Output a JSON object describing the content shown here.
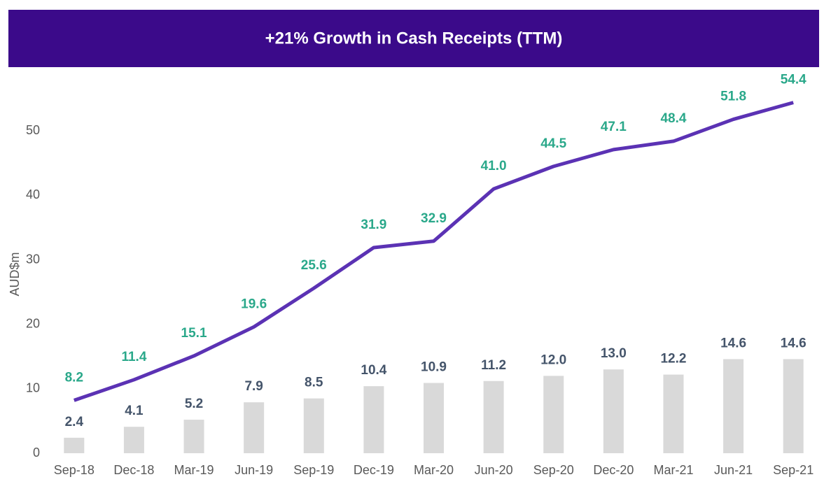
{
  "chart_data": {
    "type": "bar-line",
    "title": "+21% Growth in Cash Receipts (TTM)",
    "y_label": "AUD$m",
    "categories": [
      "Sep-18",
      "Dec-18",
      "Mar-19",
      "Jun-19",
      "Sep-19",
      "Dec-19",
      "Mar-20",
      "Jun-20",
      "Sep-20",
      "Dec-20",
      "Mar-21",
      "Jun-21",
      "Sep-21"
    ],
    "series": [
      {
        "type": "bar",
        "color": "#d9d9d9",
        "values": [
          2.4,
          4.1,
          5.2,
          7.9,
          8.5,
          10.4,
          10.9,
          11.2,
          12.0,
          13.0,
          12.2,
          14.6,
          14.6
        ],
        "value_labels": [
          "2.4",
          "4.1",
          "5.2",
          "7.9",
          "8.5",
          "10.4",
          "10.9",
          "11.2",
          "12.0",
          "13.0",
          "12.2",
          "14.6",
          "14.6"
        ]
      },
      {
        "type": "line",
        "color": "#5b32b4",
        "values": [
          8.2,
          11.4,
          15.1,
          19.6,
          25.6,
          31.9,
          32.9,
          41.0,
          44.5,
          47.1,
          48.4,
          51.8,
          54.4
        ],
        "value_labels": [
          "8.2",
          "11.4",
          "15.1",
          "19.6",
          "25.6",
          "31.9",
          "32.9",
          "41.0",
          "44.5",
          "47.1",
          "48.4",
          "51.8",
          "54.4"
        ]
      }
    ],
    "ylim": [
      0,
      60
    ],
    "yticks": [
      0,
      10,
      20,
      30,
      40,
      50
    ],
    "grid": false
  }
}
